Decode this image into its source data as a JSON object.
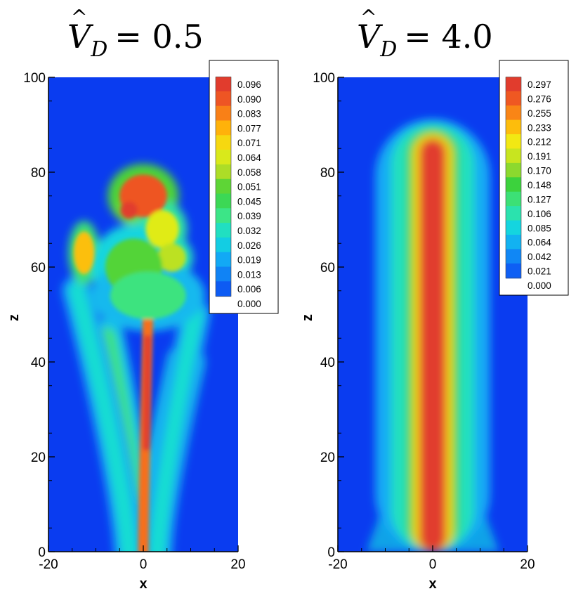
{
  "chart_data": [
    {
      "type": "heatmap",
      "title": "V̂_D = 0.5",
      "title_parts": {
        "hat_var": "V",
        "subscript": "D",
        "value": "= 0.5"
      },
      "xlabel": "x",
      "ylabel": "z",
      "xlim": [
        -20,
        20
      ],
      "ylim": [
        0,
        100
      ],
      "x_ticks": [
        "-20",
        "0",
        "20"
      ],
      "y_ticks": [
        "0",
        "20",
        "40",
        "60",
        "80",
        "100"
      ],
      "legend_position": "top-right",
      "colorbar_levels": [
        "0.096",
        "0.090",
        "0.083",
        "0.077",
        "0.071",
        "0.064",
        "0.058",
        "0.051",
        "0.045",
        "0.039",
        "0.032",
        "0.026",
        "0.019",
        "0.013",
        "0.006",
        "0.000"
      ],
      "field": "turbulent plume, unsteady, multi-branch",
      "features": [
        {
          "kind": "core",
          "x0": 0,
          "x1": 1,
          "z0": 0,
          "z1": 50,
          "width": 2.2,
          "value": 0.085
        },
        {
          "kind": "core",
          "x0": 0.6,
          "x1": 0.9,
          "z0": 22,
          "z1": 45,
          "width": 1.4,
          "value": 0.096
        },
        {
          "kind": "branch",
          "x0": -1,
          "x1": -8,
          "z0": 0,
          "z1": 45,
          "width": 4.5,
          "value": 0.04
        },
        {
          "kind": "branch",
          "x0": 2,
          "x1": 9,
          "z0": 0,
          "z1": 40,
          "width": 4.5,
          "value": 0.04
        },
        {
          "kind": "branch",
          "x0": -3,
          "x1": -14,
          "z0": 0,
          "z1": 55,
          "width": 3.5,
          "value": 0.03
        },
        {
          "kind": "branch",
          "x0": 3,
          "x1": 11,
          "z0": 0,
          "z1": 50,
          "width": 3.5,
          "value": 0.03
        },
        {
          "kind": "blob",
          "x": -12.5,
          "z": 63,
          "rx": 2.2,
          "rz": 4.5,
          "value": 0.075
        },
        {
          "kind": "blob",
          "x": 0,
          "z": 75,
          "rx": 5,
          "rz": 4.5,
          "value": 0.09
        },
        {
          "kind": "blob",
          "x": -3,
          "z": 72,
          "rx": 1.8,
          "rz": 1.8,
          "value": 0.096
        },
        {
          "kind": "blob",
          "x": 4,
          "z": 68,
          "rx": 3.5,
          "rz": 4,
          "value": 0.065
        },
        {
          "kind": "blob",
          "x": 6,
          "z": 62,
          "rx": 3,
          "rz": 3,
          "value": 0.06
        },
        {
          "kind": "blob",
          "x": -2,
          "z": 60,
          "rx": 6,
          "rz": 6,
          "value": 0.05
        },
        {
          "kind": "blob",
          "x": 1,
          "z": 54,
          "rx": 8,
          "rz": 5,
          "value": 0.04
        }
      ]
    },
    {
      "type": "heatmap",
      "title": "V̂_D = 4.0",
      "title_parts": {
        "hat_var": "V",
        "subscript": "D",
        "value": "= 4.0"
      },
      "xlabel": "x",
      "ylabel": "z",
      "xlim": [
        -20,
        20
      ],
      "ylim": [
        0,
        100
      ],
      "x_ticks": [
        "-20",
        "0",
        "20"
      ],
      "y_ticks": [
        "0",
        "20",
        "40",
        "60",
        "80",
        "100"
      ],
      "legend_position": "top-right",
      "colorbar_levels": [
        "0.297",
        "0.276",
        "0.255",
        "0.233",
        "0.212",
        "0.191",
        "0.170",
        "0.148",
        "0.127",
        "0.106",
        "0.085",
        "0.064",
        "0.042",
        "0.021",
        "0.000"
      ],
      "field": "laminar plume, straight vertical column",
      "features": [
        {
          "kind": "column",
          "x": 0,
          "z0": 0,
          "z1": 86,
          "core_width": 2.8,
          "halo_width": 5.5,
          "value": 0.297
        },
        {
          "kind": "skirt",
          "x": 0,
          "z0": 0,
          "z1": 30,
          "half_width": 14,
          "value": 0.08
        }
      ]
    }
  ],
  "colors": {
    "colormap": [
      "#0a3cf0",
      "#0f6ef5",
      "#12aaf5",
      "#14dcdc",
      "#3ce68c",
      "#3cd23c",
      "#aadc28",
      "#f0f014",
      "#ffb40a",
      "#f5641e",
      "#e13c2d"
    ],
    "axis": "#000000",
    "background": "#ffffff"
  }
}
